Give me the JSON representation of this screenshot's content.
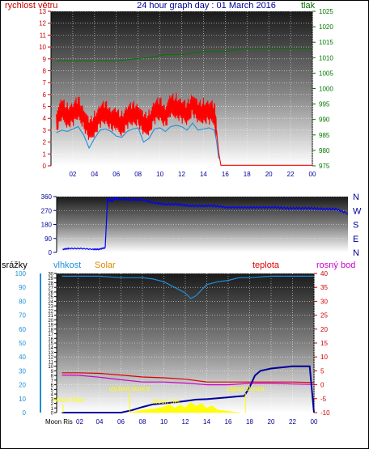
{
  "colors": {
    "wind": "#ff0000",
    "gust": "#ff0000",
    "avgwind": "#1e8fd6",
    "pressure": "#007700",
    "direction": "#0000ff",
    "humidity": "#1e8fd6",
    "solar": "#ffff00",
    "temperature": "#dd0000",
    "dewpoint": "#cc00cc",
    "rain": "#000099",
    "title": "#000099",
    "leftAxis": "#cc0000",
    "rightAxis": "#007700",
    "humAxis": "#1e8fd6",
    "tempAxis": "#cc0000",
    "dirAxis": "#000099",
    "sunEvents": "#ffff00"
  },
  "chart_data": [
    {
      "type": "line",
      "title": "24 hour graph day : 01 March 2016",
      "ylabel": "rychlost větru",
      "y2label": "tlak",
      "x_ticks": [
        "02",
        "04",
        "06",
        "08",
        "10",
        "12",
        "14",
        "16",
        "18",
        "20",
        "22",
        "00"
      ],
      "ylim": [
        0,
        13
      ],
      "yticks": [
        "0",
        "1",
        "2",
        "3",
        "4",
        "5",
        "6",
        "7",
        "8",
        "9",
        "10",
        "11",
        "12",
        "13"
      ],
      "y2lim": [
        975,
        1025
      ],
      "y2ticks": [
        "975",
        "980",
        "985",
        "990",
        "995",
        "1000",
        "1005",
        "1010",
        "1015",
        "1020",
        "1025"
      ],
      "grid": true,
      "series": [
        {
          "key": "gust",
          "axis": "left",
          "x": [
            0.5,
            1,
            1.5,
            2,
            2.5,
            3,
            3.5,
            4,
            4.5,
            5,
            5.5,
            6,
            6.5,
            7,
            7.5,
            8,
            8.5,
            9,
            9.5,
            10,
            10.5,
            11,
            11.5,
            12,
            12.5,
            13,
            13.5,
            14,
            14.5,
            15,
            15.2,
            15.4,
            15.6,
            24
          ],
          "values": [
            3.8,
            4.6,
            4.2,
            4.3,
            4.8,
            4.1,
            2.8,
            3.5,
            4.2,
            4.4,
            4.0,
            3.7,
            3.5,
            4.1,
            4.3,
            4.4,
            3.3,
            3.6,
            4.5,
            4.7,
            4.2,
            4.9,
            5.0,
            4.6,
            4.3,
            5.3,
            4.3,
            4.6,
            4.5,
            4.3,
            3.0,
            1.1,
            0.05,
            0.05
          ]
        },
        {
          "key": "avgwind",
          "axis": "left",
          "x": [
            0.5,
            1,
            1.5,
            2,
            2.5,
            3,
            3.5,
            4,
            4.5,
            5,
            5.5,
            6,
            6.5,
            7,
            7.5,
            8,
            8.5,
            9,
            9.5,
            10,
            10.5,
            11,
            11.5,
            12,
            12.5,
            13,
            13.5,
            14,
            14.5,
            15,
            15.2,
            15.4
          ],
          "values": [
            2.8,
            3.0,
            2.9,
            3.1,
            3.3,
            2.6,
            1.5,
            2.3,
            3.0,
            3.1,
            2.9,
            2.5,
            2.4,
            2.9,
            3.1,
            3.2,
            2.0,
            2.3,
            3.1,
            3.2,
            2.9,
            3.3,
            3.4,
            3.3,
            3.0,
            3.6,
            3.0,
            3.1,
            3.2,
            3.0,
            2.1,
            0.6
          ]
        },
        {
          "key": "pressure",
          "axis": "right",
          "x": [
            0.5,
            3,
            6,
            9,
            10.5,
            12,
            14,
            16,
            18,
            20,
            24
          ],
          "values": [
            1009,
            1009,
            1009,
            1010,
            1011,
            1011,
            1012,
            1012,
            1013,
            1013,
            1013
          ]
        }
      ]
    },
    {
      "type": "scatter",
      "ylabel": "",
      "ylim": [
        0,
        360
      ],
      "yticks": [
        "0",
        "90",
        "180",
        "270",
        "360"
      ],
      "right_labels": [
        "N",
        "W",
        "S",
        "E",
        "N"
      ],
      "x_ticks": [],
      "series": [
        {
          "key": "direction",
          "x": [
            0.5,
            1,
            2,
            3,
            3.5,
            4,
            4.2,
            4.5,
            4.8,
            5,
            6,
            7,
            8,
            9,
            10,
            11,
            12,
            13,
            14,
            15,
            16,
            17,
            18,
            19,
            20,
            21,
            22,
            23,
            24
          ],
          "values": [
            20,
            25,
            25,
            20,
            20,
            30,
            350,
            330,
            350,
            345,
            340,
            340,
            320,
            310,
            310,
            300,
            300,
            300,
            290,
            290,
            290,
            290,
            290,
            285,
            285,
            285,
            280,
            280,
            250
          ]
        }
      ]
    },
    {
      "type": "line",
      "ylabel": "srážky",
      "label_humidity": "vlhkost",
      "label_solar": "Solar",
      "label_temperature": "teplota",
      "label_dewpoint": "rosný bod",
      "humidity_ticks": [
        "0",
        "10",
        "20",
        "30",
        "40",
        "50",
        "60",
        "70",
        "80",
        "90",
        "100"
      ],
      "rain_ticks": [
        "0",
        "1",
        "2",
        "3",
        "4",
        "5",
        "6",
        "7",
        "8",
        "9",
        "10",
        "11",
        "12",
        "13",
        "14",
        "15",
        "16",
        "17",
        "18",
        "19",
        "20",
        "21",
        "22",
        "23",
        "24",
        "25",
        "26",
        "27",
        "28",
        "29",
        "30"
      ],
      "temp_ticks": [
        "-10",
        "-5",
        "0",
        "5",
        "10",
        "15",
        "20",
        "25",
        "30",
        "35",
        "40"
      ],
      "x_ticks": [
        "02",
        "04",
        "06",
        "08",
        "10",
        "12",
        "14",
        "16",
        "18",
        "20",
        "22",
        "00"
      ],
      "rain_lim": [
        0,
        30
      ],
      "temp_lim": [
        -10,
        40
      ],
      "events": [
        {
          "label": "Moon Rise",
          "x": 0.6
        },
        {
          "label": "východ slunce",
          "x": 6.8
        },
        {
          "label": "Moon Set",
          "x": 10.2
        },
        {
          "label": "západ slunce",
          "x": 17.6
        }
      ],
      "moon_label": "Moon Ris",
      "series": [
        {
          "key": "humidity",
          "axis": "humidity",
          "x": [
            0.5,
            2,
            4,
            6,
            8,
            9,
            10,
            11,
            12,
            12.5,
            13,
            13.5,
            14,
            15,
            16,
            17,
            18,
            20,
            22,
            24
          ],
          "values": [
            98,
            98,
            98,
            97,
            97,
            96,
            94,
            90,
            86,
            82,
            84,
            88,
            92,
            94,
            95,
            97,
            97,
            98,
            98,
            98
          ]
        },
        {
          "key": "temperature",
          "axis": "temp",
          "x": [
            0.5,
            2,
            4,
            6,
            8,
            10,
            12,
            14,
            16,
            18,
            20,
            22,
            24
          ],
          "values": [
            4.3,
            4.3,
            4.1,
            3.5,
            2.8,
            2.5,
            2.0,
            1.0,
            1.0,
            1.0,
            1.0,
            1.0,
            0.8
          ]
        },
        {
          "key": "dewpoint",
          "axis": "temp",
          "x": [
            0.5,
            2,
            4,
            6,
            8,
            10,
            12,
            14,
            16,
            18,
            20,
            22,
            24
          ],
          "values": [
            3.5,
            3.4,
            2.7,
            1.8,
            1.0,
            1.0,
            0.6,
            0.0,
            0.0,
            0.5,
            0.5,
            0.3,
            0.1
          ]
        },
        {
          "key": "rain",
          "axis": "rain",
          "x": [
            0.5,
            6,
            7,
            8,
            9,
            10,
            11,
            12,
            13,
            14,
            15,
            16,
            17,
            17.5,
            18,
            18.5,
            19,
            20,
            22,
            23.6,
            24
          ],
          "values": [
            0,
            0,
            0.5,
            1.2,
            1.8,
            2.0,
            2.2,
            2.5,
            2.8,
            2.9,
            3.1,
            3.3,
            3.5,
            3.6,
            5.5,
            8.0,
            9.0,
            9.5,
            10.0,
            10.0,
            0
          ]
        },
        {
          "key": "solar",
          "axis": "rain",
          "x": [
            6.8,
            7.5,
            8,
            9,
            10,
            10.5,
            11,
            11.5,
            12,
            12.5,
            13,
            13.5,
            14,
            14.5,
            15,
            16,
            17
          ],
          "values": [
            0,
            0.3,
            0.6,
            0.8,
            1.2,
            1.8,
            1.0,
            1.6,
            1.1,
            2.2,
            1.4,
            2.0,
            1.0,
            1.5,
            0.6,
            0.3,
            0
          ]
        }
      ]
    }
  ]
}
